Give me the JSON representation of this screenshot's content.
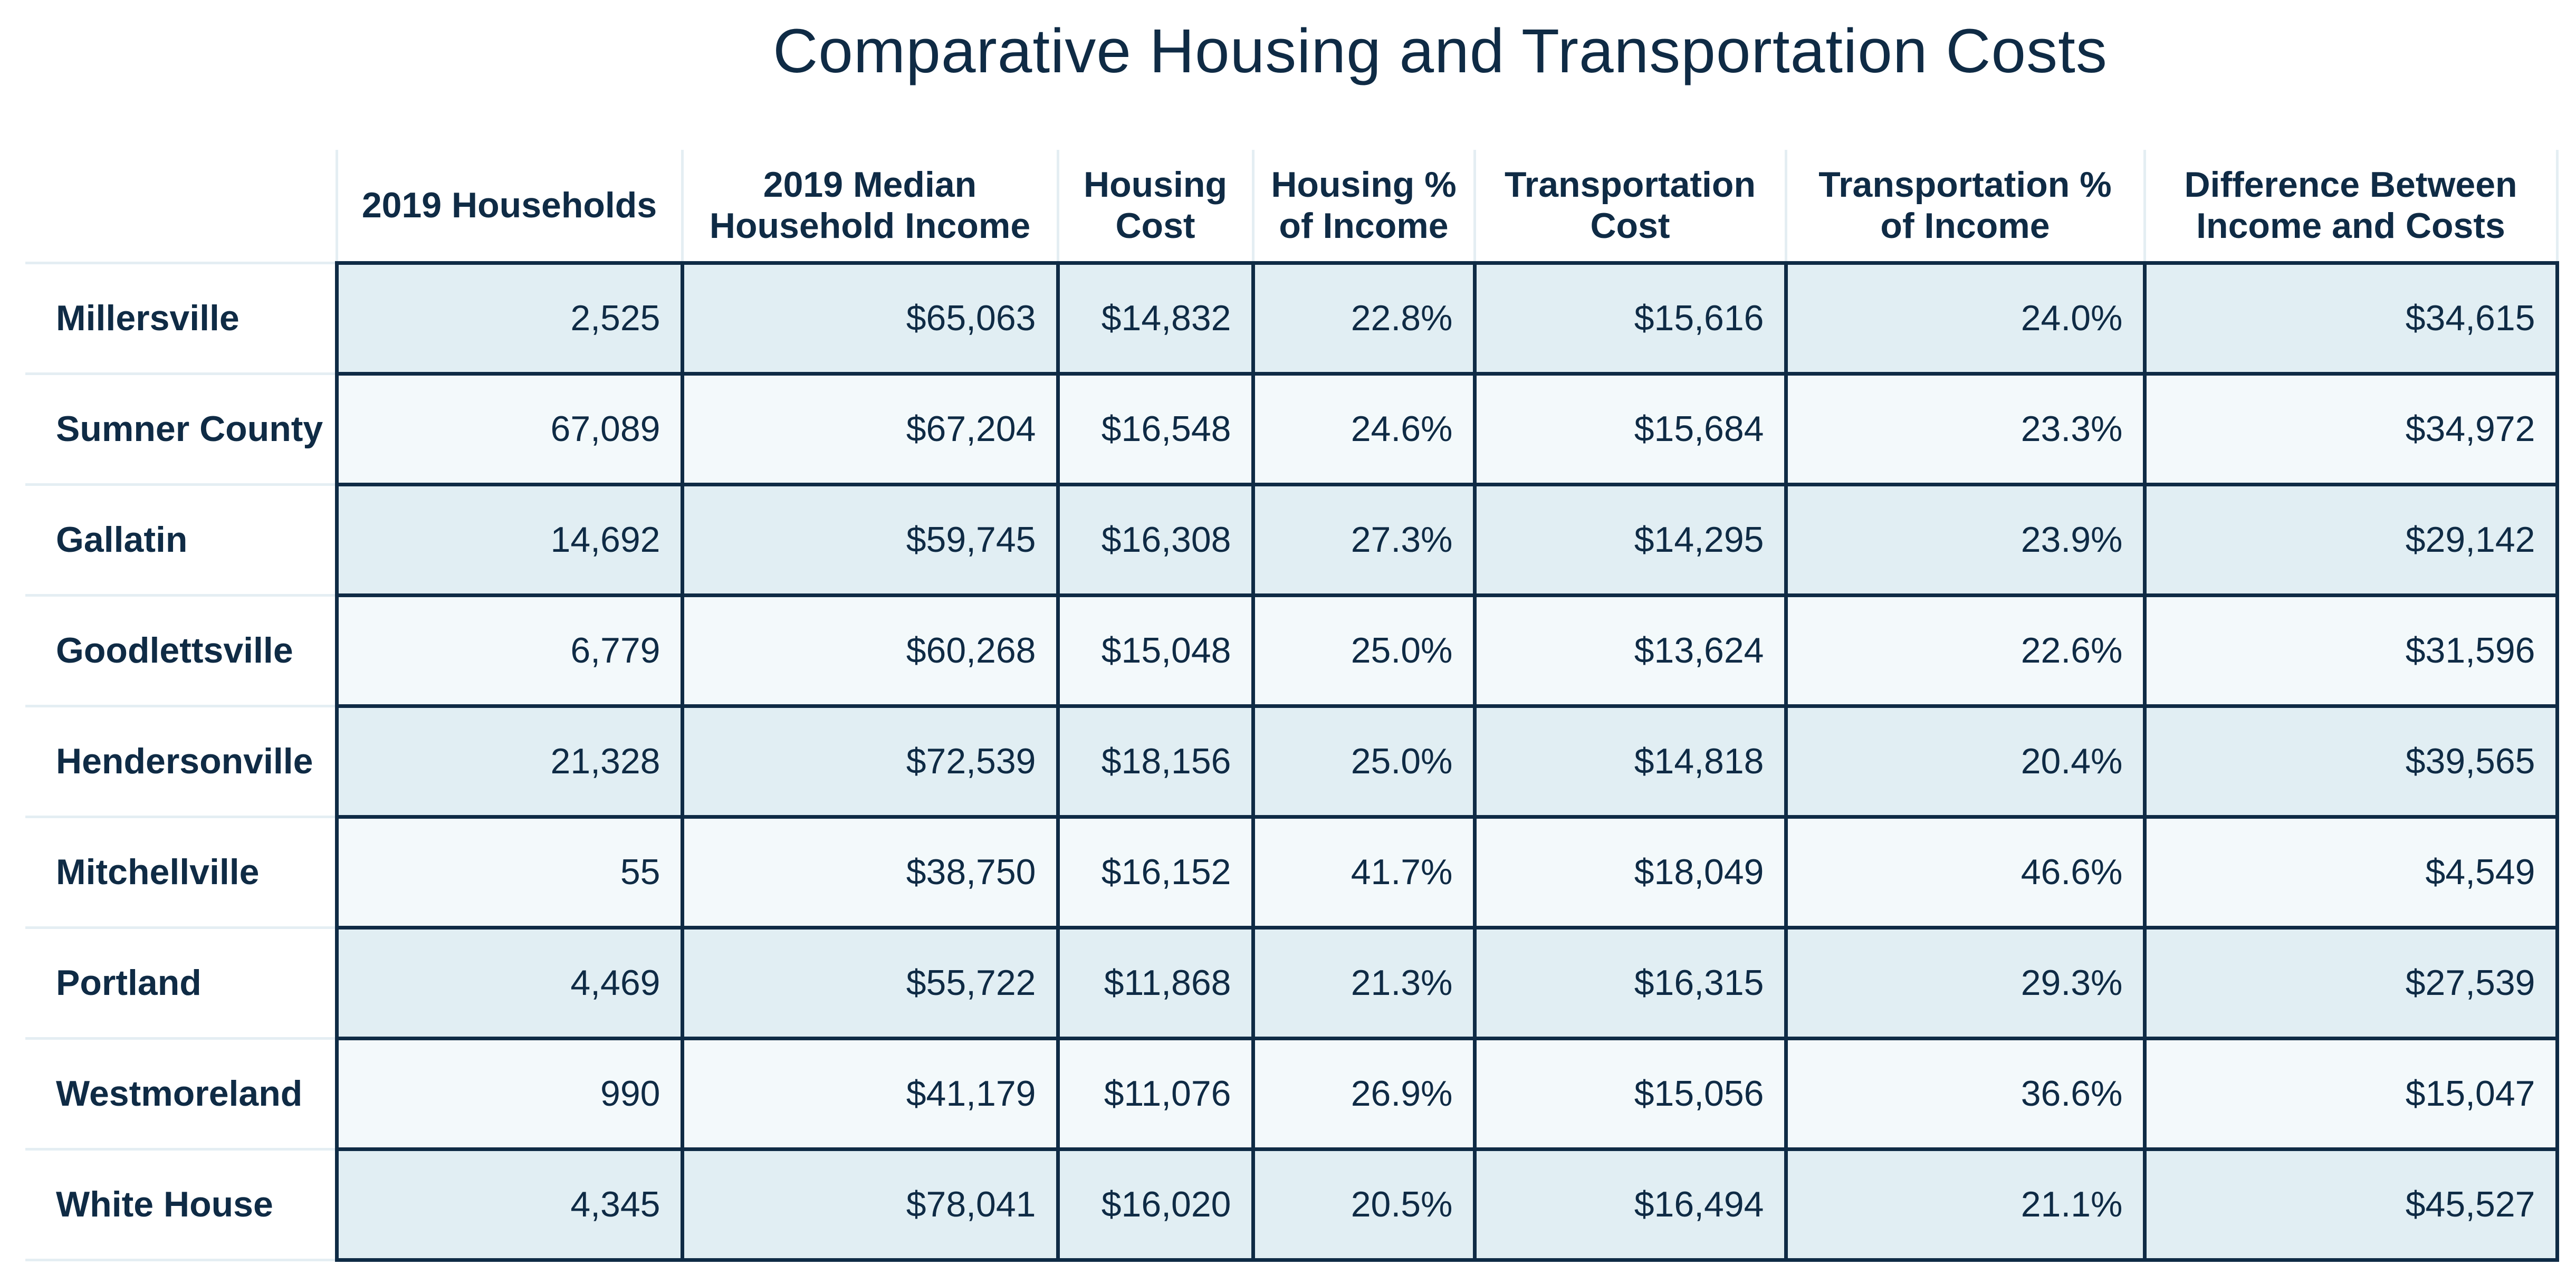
{
  "title": "Comparative Housing and Transportation Costs",
  "table": {
    "headers": [
      "",
      "2019 Households",
      "2019 Median Household Income",
      "Housing Cost",
      "Housing % of Income",
      "Transportation Cost",
      "Transportation % of Income",
      "Difference Between Income and Costs"
    ],
    "header_lines": [
      [
        ""
      ],
      [
        "2019 Households"
      ],
      [
        "2019 Median",
        "Household Income"
      ],
      [
        "Housing",
        "Cost"
      ],
      [
        "Housing %",
        "of Income"
      ],
      [
        "Transportation",
        "Cost"
      ],
      [
        "Transportation %",
        "of Income"
      ],
      [
        "Difference Between",
        "Income and Costs"
      ]
    ],
    "rows": [
      [
        "Millersville",
        "2,525",
        "$65,063",
        "$14,832",
        "22.8%",
        "$15,616",
        "24.0%",
        "$34,615"
      ],
      [
        "Sumner County",
        "67,089",
        "$67,204",
        "$16,548",
        "24.6%",
        "$15,684",
        "23.3%",
        "$34,972"
      ],
      [
        "Gallatin",
        "14,692",
        "$59,745",
        "$16,308",
        "27.3%",
        "$14,295",
        "23.9%",
        "$29,142"
      ],
      [
        "Goodlettsville",
        "6,779",
        "$60,268",
        "$15,048",
        "25.0%",
        "$13,624",
        "22.6%",
        "$31,596"
      ],
      [
        "Hendersonville",
        "21,328",
        "$72,539",
        "$18,156",
        "25.0%",
        "$14,818",
        "20.4%",
        "$39,565"
      ],
      [
        "Mitchellville",
        "55",
        "$38,750",
        "$16,152",
        "41.7%",
        "$18,049",
        "46.6%",
        "$4,549"
      ],
      [
        "Portland",
        "4,469",
        "$55,722",
        "$11,868",
        "21.3%",
        "$16,315",
        "29.3%",
        "$27,539"
      ],
      [
        "Westmoreland",
        "990",
        "$41,179",
        "$11,076",
        "26.9%",
        "$15,056",
        "36.6%",
        "$15,047"
      ],
      [
        "White House",
        "4,345",
        "$78,041",
        "$16,020",
        "20.5%",
        "$16,494",
        "21.1%",
        "$45,527"
      ]
    ]
  },
  "colors": {
    "text": "#0f2b45",
    "grid": "#0f2b45",
    "row_shade_dark": "#e1eef3",
    "row_shade_light": "#f3f9fb",
    "header_divider": "#e4eef3"
  }
}
